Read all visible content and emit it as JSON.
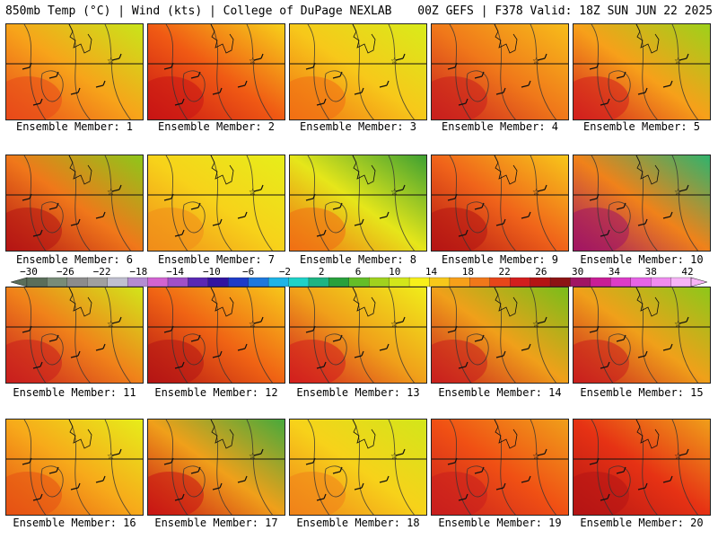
{
  "header": {
    "left_title": "850mb Temp (°C) | Wind (kts) | College of DuPage NEXLAB",
    "right_title": "00Z GEFS | F378 Valid: 18Z SUN JUN 22 2025"
  },
  "members": [
    {
      "label": "Ensemble Member: 1",
      "palette": [
        "#e8481a",
        "#f7a41a",
        "#c8e61a"
      ]
    },
    {
      "label": "Ensemble Member: 2",
      "palette": [
        "#c81414",
        "#f05a14",
        "#f7d21a"
      ]
    },
    {
      "label": "Ensemble Member: 3",
      "palette": [
        "#f06e14",
        "#f7c81a",
        "#d8ec1a"
      ]
    },
    {
      "label": "Ensemble Member: 4",
      "palette": [
        "#c81e1e",
        "#f0781a",
        "#f7be1a"
      ]
    },
    {
      "label": "Ensemble Member: 5",
      "palette": [
        "#d21e1e",
        "#f7a01a",
        "#9cd21a"
      ]
    },
    {
      "label": "Ensemble Member: 6",
      "palette": [
        "#b41414",
        "#f0781a",
        "#8cc81a"
      ]
    },
    {
      "label": "Ensemble Member: 7",
      "palette": [
        "#f08c1a",
        "#f7d21a",
        "#e6ee1a"
      ]
    },
    {
      "label": "Ensemble Member: 8",
      "palette": [
        "#f06e14",
        "#e6e61a",
        "#3ca032"
      ]
    },
    {
      "label": "Ensemble Member: 9",
      "palette": [
        "#b41414",
        "#f0641a",
        "#f7c81a"
      ]
    },
    {
      "label": "Ensemble Member: 10",
      "palette": [
        "#a01464",
        "#f0821a",
        "#2db46e"
      ]
    },
    {
      "label": "Ensemble Member: 11",
      "palette": [
        "#c81e1e",
        "#f0821a",
        "#d2e61a"
      ]
    },
    {
      "label": "Ensemble Member: 12",
      "palette": [
        "#b41414",
        "#f06414",
        "#f7c81a"
      ]
    },
    {
      "label": "Ensemble Member: 13",
      "palette": [
        "#d21e1e",
        "#f0a01a",
        "#f0ee1a"
      ]
    },
    {
      "label": "Ensemble Member: 14",
      "palette": [
        "#c81e1e",
        "#f0a01a",
        "#78be1a"
      ]
    },
    {
      "label": "Ensemble Member: 15",
      "palette": [
        "#c81e1e",
        "#f0a01a",
        "#8cc81a"
      ]
    },
    {
      "label": "Ensemble Member: 16",
      "palette": [
        "#e65014",
        "#f7aa1a",
        "#e6ee1a"
      ]
    },
    {
      "label": "Ensemble Member: 17",
      "palette": [
        "#c81414",
        "#f0a01a",
        "#46aa3c"
      ]
    },
    {
      "label": "Ensemble Member: 18",
      "palette": [
        "#f0821a",
        "#f7d21a",
        "#d2e61a"
      ]
    },
    {
      "label": "Ensemble Member: 19",
      "palette": [
        "#c81e1e",
        "#f05014",
        "#f0a01a"
      ]
    },
    {
      "label": "Ensemble Member: 20",
      "palette": [
        "#b41414",
        "#e63214",
        "#f0a01a"
      ]
    }
  ],
  "colorbar": {
    "ticks": [
      "−30",
      "−26",
      "−22",
      "−18",
      "−14",
      "−10",
      "−6",
      "−2",
      "2",
      "6",
      "10",
      "14",
      "18",
      "22",
      "26",
      "30",
      "34",
      "38",
      "42"
    ],
    "colors": [
      "#5a6e5a",
      "#788c78",
      "#8c8c8c",
      "#a0a0a0",
      "#c0c0d0",
      "#b48cd2",
      "#d264d2",
      "#a050c8",
      "#5a28b4",
      "#3214a0",
      "#1e3cc8",
      "#1e78dc",
      "#1eb4e6",
      "#1ed2c8",
      "#1eb482",
      "#28a03c",
      "#64be28",
      "#a0d21e",
      "#d2e61a",
      "#f7f01a",
      "#f7c81a",
      "#f7a01a",
      "#f0781a",
      "#e6461a",
      "#d21e1e",
      "#b41414",
      "#8c1414",
      "#a01464",
      "#c81e96",
      "#dc3cc8",
      "#e664e6",
      "#f08cf0",
      "#f7b4f7"
    ]
  }
}
